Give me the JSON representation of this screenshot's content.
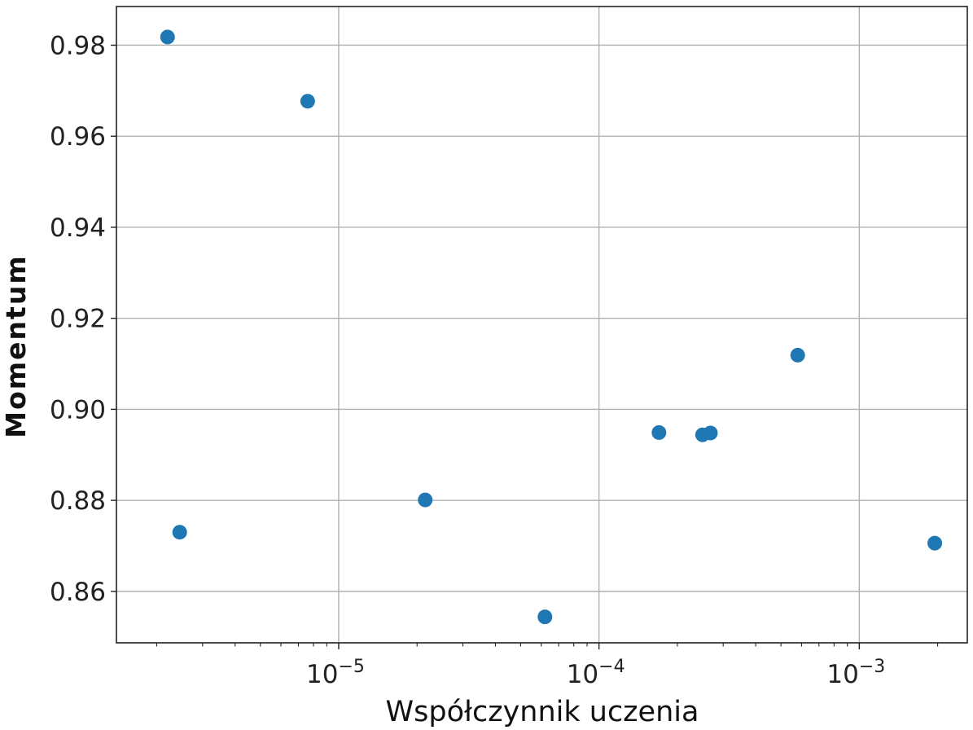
{
  "chart_data": {
    "type": "scatter",
    "xlabel": "Współczynnik uczenia",
    "ylabel": "Momentum",
    "xscale": "log",
    "xlim": [
      1.4e-06,
      0.0026
    ],
    "ylim": [
      0.8487,
      0.9885
    ],
    "grid": true,
    "marker_color": "#1f77b4",
    "y_ticks": [
      0.86,
      0.88,
      0.9,
      0.92,
      0.94,
      0.96,
      0.98
    ],
    "y_tick_labels": [
      "0.86",
      "0.88",
      "0.90",
      "0.92",
      "0.94",
      "0.96",
      "0.98"
    ],
    "x_ticks": [
      1e-05,
      0.0001,
      0.001
    ],
    "x_tick_labels": [
      {
        "base": "10",
        "exp": "−5"
      },
      {
        "base": "10",
        "exp": "−4"
      },
      {
        "base": "10",
        "exp": "−3"
      }
    ],
    "points": [
      {
        "x": 2.2e-06,
        "y": 0.9818
      },
      {
        "x": 2.45e-06,
        "y": 0.873
      },
      {
        "x": 7.6e-06,
        "y": 0.9677
      },
      {
        "x": 2.15e-05,
        "y": 0.8801
      },
      {
        "x": 6.2e-05,
        "y": 0.8544
      },
      {
        "x": 0.00017,
        "y": 0.8949
      },
      {
        "x": 0.00025,
        "y": 0.8944
      },
      {
        "x": 0.000268,
        "y": 0.8948
      },
      {
        "x": 0.00058,
        "y": 0.9119
      },
      {
        "x": 0.00195,
        "y": 0.8706
      }
    ]
  }
}
